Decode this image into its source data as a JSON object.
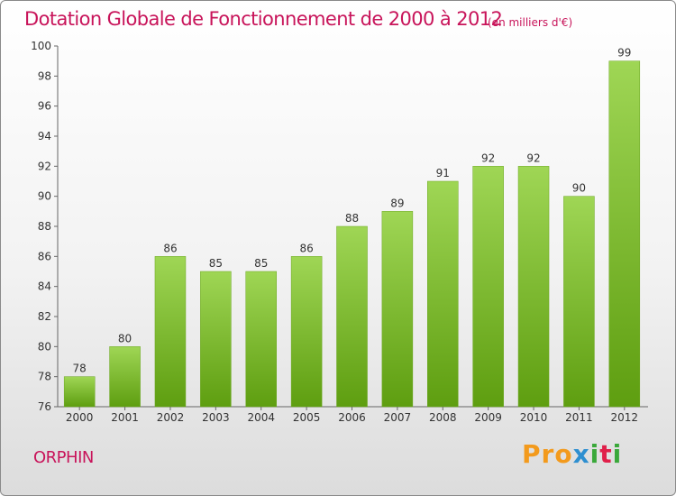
{
  "title": "Dotation Globale de Fonctionnement de 2000 à 2012",
  "unit": "(en milliers d'€)",
  "commune": "ORPHIN",
  "logo": {
    "p1": "Pro",
    "p2": "x",
    "p3": "i",
    "p4": "t",
    "p5": "i"
  },
  "colors": {
    "title": "#c8145a",
    "bar_top": "#9fd655",
    "bar_bottom": "#5e9e10"
  },
  "chart_data": {
    "type": "bar",
    "title": "Dotation Globale de Fonctionnement de 2000 à 2012",
    "categories": [
      "2000",
      "2001",
      "2002",
      "2003",
      "2004",
      "2005",
      "2006",
      "2007",
      "2008",
      "2009",
      "2010",
      "2011",
      "2012"
    ],
    "values": [
      78,
      80,
      86,
      85,
      85,
      86,
      88,
      89,
      91,
      92,
      92,
      90,
      99
    ],
    "ylim": [
      76,
      100
    ],
    "yticks": [
      76,
      78,
      80,
      82,
      84,
      86,
      88,
      90,
      92,
      94,
      96,
      98,
      100
    ],
    "grid": false
  }
}
